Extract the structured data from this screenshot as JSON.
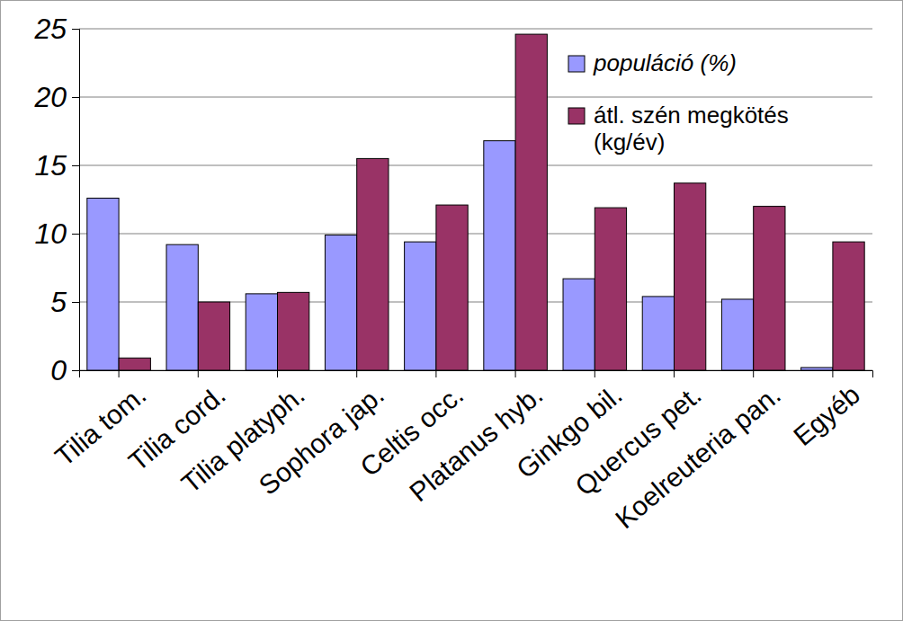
{
  "chart_data": {
    "type": "bar",
    "categories": [
      "Tilia tom.",
      "Tilia cord.",
      "Tilia platyph.",
      "Sophora jap.",
      "Celtis occ.",
      "Platanus hyb.",
      "Ginkgo bil.",
      "Quercus pet.",
      "Koelreuteria pan.",
      "Egyéb"
    ],
    "series": [
      {
        "name": "populáció (%)",
        "color": "#9999ff",
        "values": [
          12.6,
          9.2,
          5.6,
          9.9,
          9.4,
          16.8,
          6.7,
          5.4,
          5.2,
          0.2
        ]
      },
      {
        "name": "átl. szén megkötés (kg/év)",
        "color": "#993366",
        "values": [
          0.9,
          5.0,
          5.7,
          15.5,
          12.1,
          24.6,
          11.9,
          13.7,
          12.0,
          9.4
        ]
      }
    ],
    "ylim": [
      0,
      25
    ],
    "yticks": [
      0,
      5,
      10,
      15,
      20,
      25
    ],
    "grid": true,
    "legend": "upper right"
  }
}
